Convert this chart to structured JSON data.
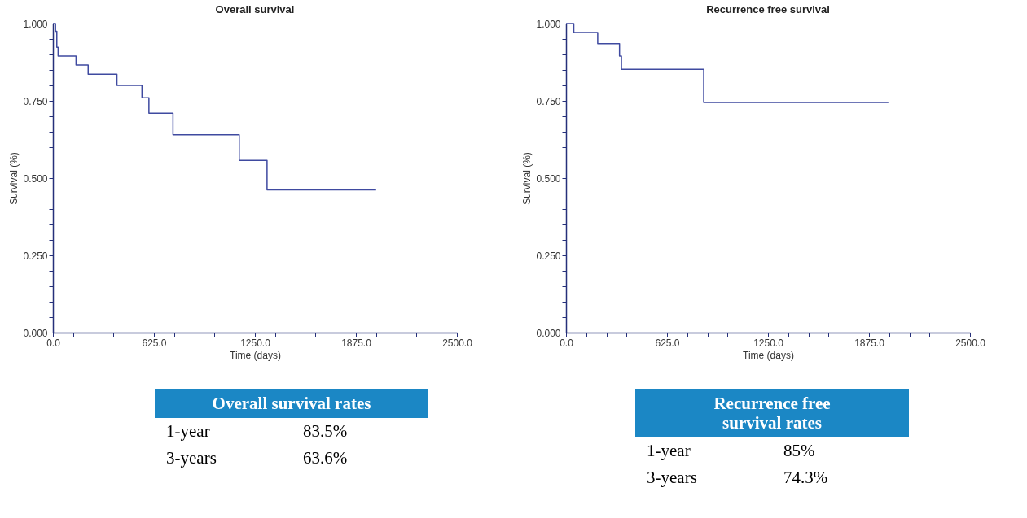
{
  "chart_data": [
    {
      "type": "step",
      "title": "Overall survival",
      "xlabel": "Time (days)",
      "ylabel": "Survival (%)",
      "x": [
        0,
        16,
        24,
        32,
        143,
        218,
        396,
        551,
        594,
        743,
        1153,
        1325,
        2000
      ],
      "series": [
        {
          "color": "#3f4aa0",
          "values": [
            1.0,
            0.975,
            0.923,
            0.895,
            0.866,
            0.836,
            0.8,
            0.76,
            0.71,
            0.64,
            0.557,
            0.462,
            0.462
          ]
        }
      ],
      "xlim": [
        0,
        2500
      ],
      "xticks": [
        {
          "value": 0,
          "label": "0.0"
        },
        {
          "value": 125,
          "label": null
        },
        {
          "value": 250,
          "label": null
        },
        {
          "value": 375,
          "label": null
        },
        {
          "value": 500,
          "label": null
        },
        {
          "value": 625,
          "label": "625.0"
        },
        {
          "value": 750,
          "label": null
        },
        {
          "value": 875,
          "label": null
        },
        {
          "value": 1000,
          "label": null
        },
        {
          "value": 1125,
          "label": null
        },
        {
          "value": 1250,
          "label": "1250.0"
        },
        {
          "value": 1375,
          "label": null
        },
        {
          "value": 1500,
          "label": null
        },
        {
          "value": 1625,
          "label": null
        },
        {
          "value": 1750,
          "label": null
        },
        {
          "value": 1875,
          "label": "1875.0"
        },
        {
          "value": 2000,
          "label": null
        },
        {
          "value": 2125,
          "label": null
        },
        {
          "value": 2250,
          "label": null
        },
        {
          "value": 2375,
          "label": null
        },
        {
          "value": 2500,
          "label": "2500.0"
        }
      ],
      "ylim": [
        0,
        1
      ],
      "yticks": [
        {
          "value": 0,
          "label": "0.000"
        },
        {
          "value": 0.05,
          "label": null
        },
        {
          "value": 0.1,
          "label": null
        },
        {
          "value": 0.15,
          "label": null
        },
        {
          "value": 0.2,
          "label": null
        },
        {
          "value": 0.25,
          "label": "0.250"
        },
        {
          "value": 0.3,
          "label": null
        },
        {
          "value": 0.35,
          "label": null
        },
        {
          "value": 0.4,
          "label": null
        },
        {
          "value": 0.45,
          "label": null
        },
        {
          "value": 0.5,
          "label": "0.500"
        },
        {
          "value": 0.55,
          "label": null
        },
        {
          "value": 0.6,
          "label": null
        },
        {
          "value": 0.65,
          "label": null
        },
        {
          "value": 0.7,
          "label": null
        },
        {
          "value": 0.75,
          "label": "0.750"
        },
        {
          "value": 0.8,
          "label": null
        },
        {
          "value": 0.85,
          "label": null
        },
        {
          "value": 0.9,
          "label": null
        },
        {
          "value": 0.95,
          "label": null
        },
        {
          "value": 1,
          "label": "1.000"
        }
      ],
      "annotations": [
        "Overall survival rates",
        "1-year",
        "83.5%",
        "3-years",
        "63.6%"
      ]
    },
    {
      "type": "step",
      "title": "Recurrence free survival",
      "xlabel": "Time (days)",
      "ylabel": "Survival (%)",
      "x": [
        0,
        48,
        196,
        331,
        343,
        852,
        1995
      ],
      "series": [
        {
          "color": "#3f4aa0",
          "values": [
            1.0,
            0.971,
            0.935,
            0.895,
            0.852,
            0.745,
            0.745
          ]
        }
      ],
      "xlim": [
        0,
        2500
      ],
      "xticks": [
        {
          "value": 0,
          "label": "0.0"
        },
        {
          "value": 125,
          "label": null
        },
        {
          "value": 250,
          "label": null
        },
        {
          "value": 375,
          "label": null
        },
        {
          "value": 500,
          "label": null
        },
        {
          "value": 625,
          "label": "625.0"
        },
        {
          "value": 750,
          "label": null
        },
        {
          "value": 875,
          "label": null
        },
        {
          "value": 1000,
          "label": null
        },
        {
          "value": 1125,
          "label": null
        },
        {
          "value": 1250,
          "label": "1250.0"
        },
        {
          "value": 1375,
          "label": null
        },
        {
          "value": 1500,
          "label": null
        },
        {
          "value": 1625,
          "label": null
        },
        {
          "value": 1750,
          "label": null
        },
        {
          "value": 1875,
          "label": "1875.0"
        },
        {
          "value": 2000,
          "label": null
        },
        {
          "value": 2125,
          "label": null
        },
        {
          "value": 2250,
          "label": null
        },
        {
          "value": 2375,
          "label": null
        },
        {
          "value": 2500,
          "label": "2500.0"
        }
      ],
      "ylim": [
        0,
        1
      ],
      "yticks": [
        {
          "value": 0,
          "label": "0.000"
        },
        {
          "value": 0.05,
          "label": null
        },
        {
          "value": 0.1,
          "label": null
        },
        {
          "value": 0.15,
          "label": null
        },
        {
          "value": 0.2,
          "label": null
        },
        {
          "value": 0.25,
          "label": "0.250"
        },
        {
          "value": 0.3,
          "label": null
        },
        {
          "value": 0.35,
          "label": null
        },
        {
          "value": 0.4,
          "label": null
        },
        {
          "value": 0.45,
          "label": null
        },
        {
          "value": 0.5,
          "label": "0.500"
        },
        {
          "value": 0.55,
          "label": null
        },
        {
          "value": 0.6,
          "label": null
        },
        {
          "value": 0.65,
          "label": null
        },
        {
          "value": 0.7,
          "label": null
        },
        {
          "value": 0.75,
          "label": "0.750"
        },
        {
          "value": 0.8,
          "label": null
        },
        {
          "value": 0.85,
          "label": null
        },
        {
          "value": 0.9,
          "label": null
        },
        {
          "value": 0.95,
          "label": null
        },
        {
          "value": 1,
          "label": "1.000"
        }
      ],
      "annotations": [
        "Recurrence free survival rates",
        "1-year",
        "85%",
        "3-years",
        "74.3%"
      ]
    }
  ]
}
